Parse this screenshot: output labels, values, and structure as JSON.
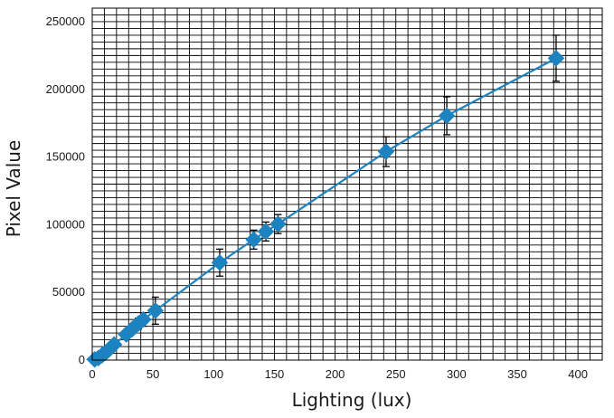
{
  "chart_data": {
    "type": "scatter",
    "title": "",
    "xlabel": "Lighting (lux)",
    "ylabel": "Pixel Value",
    "xlim": [
      0,
      420
    ],
    "ylim": [
      0,
      260000
    ],
    "x_ticks": [
      0,
      50,
      100,
      150,
      200,
      250,
      300,
      350,
      400
    ],
    "y_ticks": [
      0,
      50000,
      100000,
      150000,
      200000,
      250000
    ],
    "x_tick_labels": [
      "0",
      "50",
      "100",
      "150",
      "200",
      "250",
      "300",
      "350",
      "400"
    ],
    "y_tick_labels": [
      "0",
      "50000",
      "100000",
      "150000",
      "200000",
      "250000"
    ],
    "grid": true,
    "legend": "none",
    "series": [
      {
        "color": "#1c82c0",
        "marker": "diamond",
        "line": "connected",
        "points": [
          {
            "x": 2,
            "y": 500,
            "err": 0
          },
          {
            "x": 5,
            "y": 1500,
            "err": 0
          },
          {
            "x": 8,
            "y": 3500,
            "err": 0
          },
          {
            "x": 11,
            "y": 5500,
            "err": 1000
          },
          {
            "x": 14,
            "y": 8000,
            "err": 1500
          },
          {
            "x": 18,
            "y": 11500,
            "err": 2000
          },
          {
            "x": 28,
            "y": 19000,
            "err": 3000
          },
          {
            "x": 33,
            "y": 23000,
            "err": 3500
          },
          {
            "x": 38,
            "y": 27000,
            "err": 4000
          },
          {
            "x": 42,
            "y": 30000,
            "err": 5000
          },
          {
            "x": 52,
            "y": 36500,
            "err": 10000
          },
          {
            "x": 105,
            "y": 72000,
            "err": 10000
          },
          {
            "x": 133,
            "y": 89000,
            "err": 7000
          },
          {
            "x": 143,
            "y": 95000,
            "err": 7000
          },
          {
            "x": 153,
            "y": 100500,
            "err": 7000
          },
          {
            "x": 242,
            "y": 154000,
            "err": 11000
          },
          {
            "x": 292,
            "y": 180500,
            "err": 14000
          },
          {
            "x": 382,
            "y": 223000,
            "err": 17000
          }
        ]
      }
    ],
    "colors": {
      "axis": "#000000",
      "grid": "#000000",
      "series": "#1c82c0",
      "error_bar": "#000000"
    }
  }
}
